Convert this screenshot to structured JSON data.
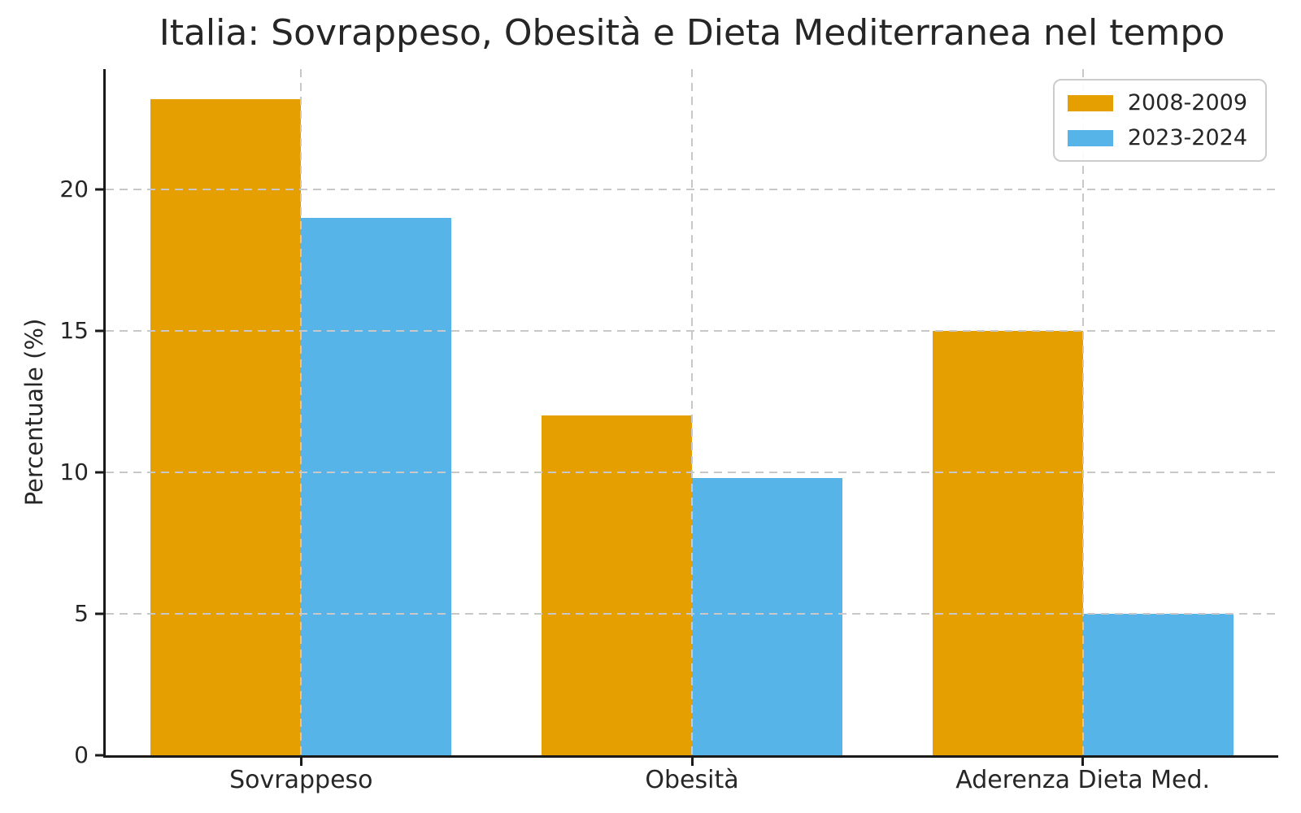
{
  "chart": {
    "title": "Italia: Sovrappeso, Obesità e Dieta Mediterranea nel tempo",
    "ylabel": "Percentuale (%)"
  },
  "chart_data": {
    "type": "bar",
    "title": "Italia: Sovrappeso, Obesità e Dieta Mediterranea nel tempo",
    "xlabel": "",
    "ylabel": "Percentuale (%)",
    "categories": [
      "Sovrappeso",
      "Obesità",
      "Aderenza Dieta Med."
    ],
    "series": [
      {
        "name": "2008-2009",
        "color": "#E69F00",
        "values": [
          23.2,
          12.0,
          15.0
        ]
      },
      {
        "name": "2023-2024",
        "color": "#56B4E9",
        "values": [
          19.0,
          9.8,
          5.0
        ]
      }
    ],
    "ylim": [
      0,
      24.25
    ],
    "yticks": [
      0,
      5,
      10,
      15,
      20
    ],
    "grid": true,
    "grid_style": "dashed",
    "legend_position": "upper right",
    "colors": {
      "background": "#ffffff",
      "axis": "#1a1a1a",
      "grid": "#c8c8c8",
      "text": "#262626",
      "legend_border": "#cccccc"
    }
  }
}
